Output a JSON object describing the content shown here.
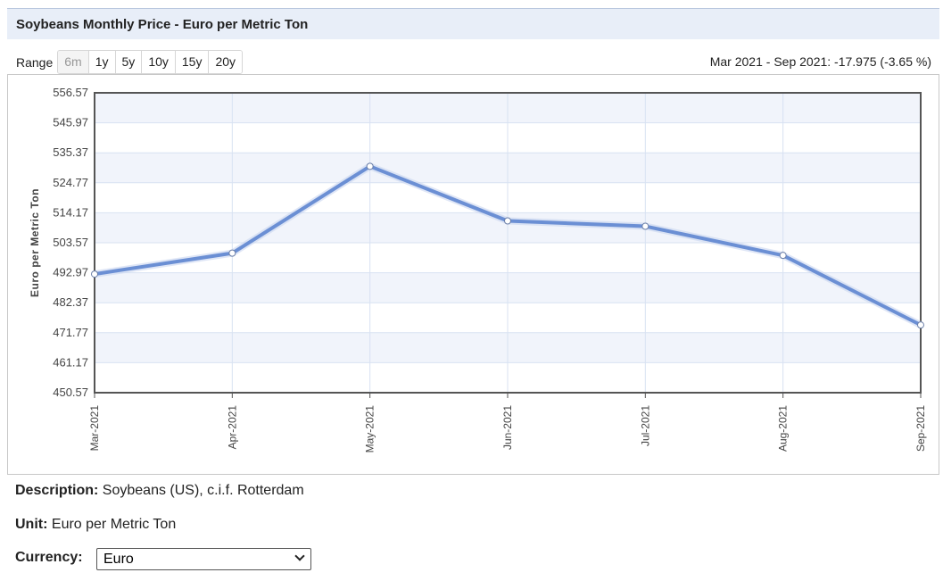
{
  "header": {
    "title": "Soybeans Monthly Price - Euro per Metric Ton"
  },
  "range": {
    "label": "Range",
    "buttons": [
      "6m",
      "1y",
      "5y",
      "10y",
      "15y",
      "20y"
    ],
    "active": "6m"
  },
  "change_summary": "Mar 2021 - Sep 2021: -17.975 (-3.65 %)",
  "colors": {
    "line": "#6b8fd4",
    "band": "#f1f4fb",
    "grid": "#d8e2f2",
    "title_bg": "#e8eef8"
  },
  "chart_data": {
    "type": "line",
    "title": "",
    "xlabel": "",
    "ylabel": "Euro per Metric Ton",
    "categories": [
      "Mar-2021",
      "Apr-2021",
      "May-2021",
      "Jun-2021",
      "Jul-2021",
      "Aug-2021",
      "Sep-2021"
    ],
    "series": [
      {
        "values": [
          492.5,
          499.9,
          530.6,
          511.3,
          509.4,
          499.1,
          474.5
        ]
      }
    ],
    "y_ticks": [
      "556.57",
      "545.97",
      "535.37",
      "524.77",
      "514.17",
      "503.57",
      "492.97",
      "482.37",
      "471.77",
      "461.17",
      "450.57"
    ],
    "ylim": [
      450.57,
      556.57
    ],
    "grid": true,
    "legend": "none"
  },
  "description": {
    "label": "Description:",
    "value": "Soybeans (US), c.i.f. Rotterdam"
  },
  "unit": {
    "label": "Unit:",
    "value": "Euro per Metric Ton"
  },
  "currency": {
    "label": "Currency:",
    "selected": "Euro"
  }
}
